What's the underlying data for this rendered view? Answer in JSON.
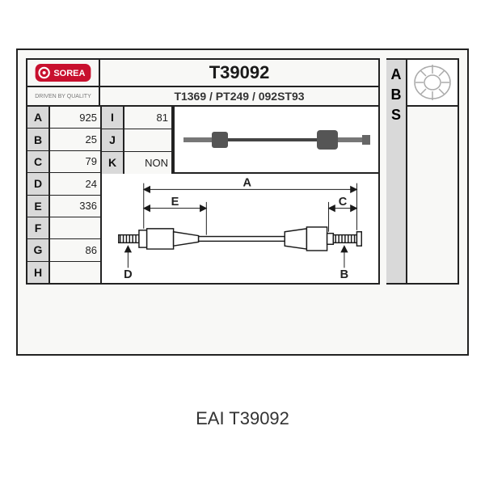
{
  "brand": {
    "logo_bg": "#c8102e",
    "logo_text": "SOREA",
    "logo_text_color": "#ffffff",
    "tagline": "DRIVEN BY QUALITY",
    "tagline_color": "#888888"
  },
  "part": {
    "number": "T39092",
    "cross_refs": "T1369 / PT249 / 092ST93"
  },
  "specs_left": [
    {
      "key": "A",
      "val": "925"
    },
    {
      "key": "B",
      "val": "25"
    },
    {
      "key": "C",
      "val": "79"
    },
    {
      "key": "D",
      "val": "24"
    },
    {
      "key": "E",
      "val": "336"
    },
    {
      "key": "F",
      "val": ""
    },
    {
      "key": "G",
      "val": "86"
    },
    {
      "key": "H",
      "val": ""
    }
  ],
  "specs_right": [
    {
      "key": "I",
      "val": "81"
    },
    {
      "key": "J",
      "val": ""
    },
    {
      "key": "K",
      "val": "NON"
    }
  ],
  "abs": {
    "letters": [
      "A",
      "B",
      "S"
    ],
    "icon_stroke": "#aaaaaa"
  },
  "diagram": {
    "labels": [
      "A",
      "B",
      "C",
      "D",
      "E"
    ],
    "dim_line_color": "#1a1a1a",
    "body_stroke": "#1a1a1a",
    "shaft_fill": "#ffffff"
  },
  "caption": {
    "maker": "EAI",
    "code": "T39092"
  },
  "colors": {
    "border": "#222222",
    "panel_bg": "#f8f8f6",
    "key_bg": "#d9d9d9",
    "white": "#ffffff"
  }
}
